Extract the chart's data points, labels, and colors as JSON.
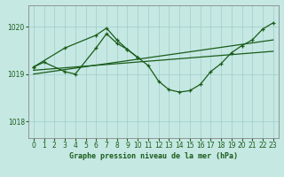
{
  "title": "Graphe pression niveau de la mer (hPa)",
  "bg_color": "#c5e8e3",
  "grid_color": "#a0ccc8",
  "line_color": "#1a5c1a",
  "ylim": [
    1017.65,
    1020.45
  ],
  "xlim": [
    -0.5,
    23.5
  ],
  "yticks": [
    1018,
    1019,
    1020
  ],
  "xticks": [
    0,
    1,
    2,
    3,
    4,
    5,
    6,
    7,
    8,
    9,
    10,
    11,
    12,
    13,
    14,
    15,
    16,
    17,
    18,
    19,
    20,
    21,
    22,
    23
  ],
  "series_main_x": [
    0,
    1,
    3,
    4,
    6,
    7,
    8,
    9,
    10,
    11,
    12,
    13,
    14,
    15,
    16,
    17,
    18,
    19,
    20,
    21,
    22,
    23
  ],
  "series_main_y": [
    1019.15,
    1019.25,
    1019.05,
    1019.0,
    1019.55,
    1019.85,
    1019.65,
    1019.52,
    1019.35,
    1019.18,
    1018.85,
    1018.67,
    1018.62,
    1018.65,
    1018.78,
    1019.05,
    1019.22,
    1019.45,
    1019.6,
    1019.72,
    1019.95,
    1020.08
  ],
  "series_upper_x": [
    0,
    3,
    6,
    7,
    8,
    9,
    10
  ],
  "series_upper_y": [
    1019.15,
    1019.55,
    1019.82,
    1019.97,
    1019.72,
    1019.52,
    1019.35
  ],
  "trend1_x": [
    0,
    23
  ],
  "trend1_y": [
    1019.08,
    1019.48
  ],
  "trend2_x": [
    0,
    23
  ],
  "trend2_y": [
    1019.0,
    1019.72
  ]
}
